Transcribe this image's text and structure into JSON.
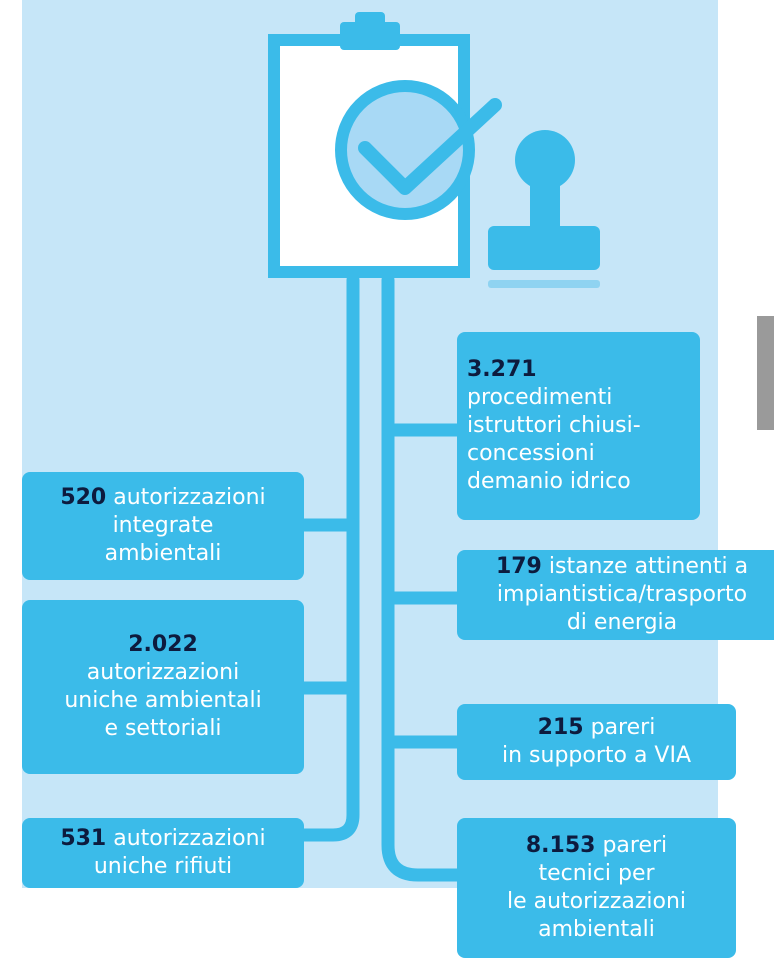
{
  "boxes": [
    {
      "number": "3.271",
      "lines": [
        "procedimenti",
        "istruttori chiusi-",
        "concessioni",
        "demanio idrico"
      ]
    },
    {
      "number": "179",
      "lines": [
        "istanze attinenti a",
        "impiantistica/trasporto",
        "di energia"
      ]
    },
    {
      "number": "215",
      "lines": [
        "pareri",
        "in supporto a VIA"
      ]
    },
    {
      "number": "8.153",
      "lines": [
        "pareri",
        "tecnici per",
        "le autorizzazioni",
        "ambientali"
      ]
    },
    {
      "number": "520",
      "lines": [
        "autorizzazioni",
        "integrate",
        "ambientali"
      ]
    },
    {
      "number": "2.022",
      "lines": [
        "autorizzazioni",
        "uniche ambientali",
        "e settoriali"
      ]
    },
    {
      "number": "531",
      "lines": [
        "autorizzazioni",
        "uniche rifiuti"
      ]
    }
  ]
}
